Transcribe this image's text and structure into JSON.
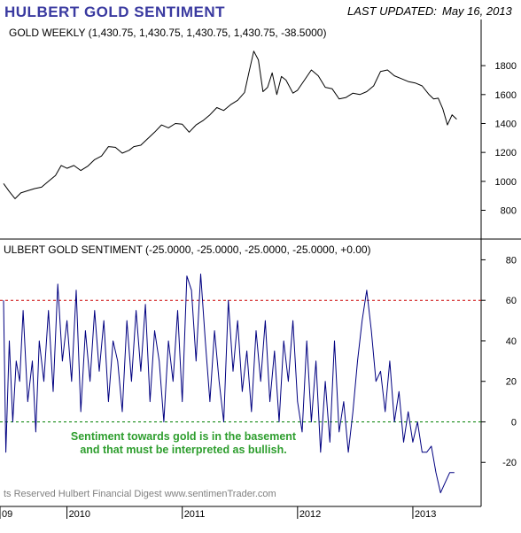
{
  "header": {
    "title": "HULBERT GOLD SENTIMENT",
    "last_updated_label": "LAST UPDATED:",
    "last_updated_date": "May 16, 2013"
  },
  "colors": {
    "title": "#3a3aa0",
    "price_line": "#000000",
    "sentiment_line": "#000080",
    "ref_line_60": "#cc0000",
    "ref_line_0": "#008000",
    "annotation": "#2e9e2e",
    "axis": "#000000",
    "footer": "#808080"
  },
  "annotation": {
    "line1": "Sentiment towards gold is in the basement",
    "line2": "and that must be interpreted as bullish."
  },
  "footer": "ts Reserved  Hulbert Financial Digest  www.sentimenTrader.com",
  "x_axis": {
    "tick_labels": [
      "09",
      "2010",
      "2011",
      "2012",
      "2013"
    ]
  },
  "chart_data": [
    {
      "type": "line",
      "label": "GOLD WEEKLY (1,430.75, 1,430.75, 1,430.75, 1,430.75, -38.5000)",
      "y_ticks": [
        800,
        1000,
        1200,
        1400,
        1600,
        1800
      ],
      "ylim": [
        650,
        1960
      ],
      "x_range": [
        2009.45,
        2013.4
      ],
      "series": [
        {
          "x": [
            2009.45,
            2009.5,
            2009.55,
            2009.6,
            2009.66,
            2009.72,
            2009.78,
            2009.84,
            2009.9,
            2009.95,
            2010.0,
            2010.06,
            2010.12,
            2010.18,
            2010.24,
            2010.3,
            2010.36,
            2010.42,
            2010.48,
            2010.54,
            2010.58,
            2010.64,
            2010.7,
            2010.76,
            2010.82,
            2010.88,
            2010.94,
            2011.0,
            2011.06,
            2011.12,
            2011.18,
            2011.24,
            2011.3,
            2011.36,
            2011.42,
            2011.48,
            2011.54,
            2011.58,
            2011.62,
            2011.66,
            2011.7,
            2011.74,
            2011.78,
            2011.82,
            2011.86,
            2011.9,
            2011.96,
            2012.0,
            2012.06,
            2012.12,
            2012.18,
            2012.24,
            2012.3,
            2012.36,
            2012.42,
            2012.48,
            2012.54,
            2012.6,
            2012.66,
            2012.72,
            2012.78,
            2012.84,
            2012.9,
            2012.96,
            2013.02,
            2013.08,
            2013.14,
            2013.18,
            2013.22,
            2013.26,
            2013.3,
            2013.34,
            2013.38
          ],
          "y": [
            985,
            930,
            880,
            920,
            935,
            950,
            960,
            1000,
            1040,
            1110,
            1090,
            1110,
            1075,
            1105,
            1150,
            1175,
            1240,
            1235,
            1195,
            1215,
            1240,
            1250,
            1295,
            1340,
            1390,
            1370,
            1400,
            1395,
            1340,
            1390,
            1420,
            1460,
            1510,
            1490,
            1530,
            1560,
            1615,
            1760,
            1900,
            1840,
            1620,
            1650,
            1750,
            1600,
            1725,
            1700,
            1610,
            1630,
            1700,
            1770,
            1730,
            1650,
            1640,
            1570,
            1580,
            1610,
            1600,
            1620,
            1660,
            1760,
            1770,
            1730,
            1710,
            1690,
            1680,
            1660,
            1600,
            1570,
            1575,
            1500,
            1390,
            1460,
            1430
          ]
        }
      ]
    },
    {
      "type": "line",
      "label": "ULBERT GOLD SENTIMENT (-25.0000, -25.0000, -25.0000, -25.0000, +0.00)",
      "y_ticks": [
        -20,
        0,
        20,
        40,
        60,
        80
      ],
      "ylim": [
        -40,
        85
      ],
      "reference_lines": [
        60,
        0
      ],
      "x_range": [
        2009.45,
        2013.4
      ],
      "series": [
        {
          "x": [
            2009.45,
            2009.47,
            2009.5,
            2009.53,
            2009.56,
            2009.59,
            2009.62,
            2009.66,
            2009.7,
            2009.73,
            2009.76,
            2009.8,
            2009.84,
            2009.88,
            2009.92,
            2009.96,
            2010.0,
            2010.04,
            2010.08,
            2010.12,
            2010.16,
            2010.2,
            2010.24,
            2010.28,
            2010.32,
            2010.36,
            2010.4,
            2010.44,
            2010.48,
            2010.52,
            2010.56,
            2010.6,
            2010.64,
            2010.68,
            2010.72,
            2010.76,
            2010.8,
            2010.84,
            2010.88,
            2010.92,
            2010.96,
            2011.0,
            2011.04,
            2011.08,
            2011.12,
            2011.16,
            2011.2,
            2011.24,
            2011.28,
            2011.32,
            2011.36,
            2011.4,
            2011.44,
            2011.48,
            2011.52,
            2011.56,
            2011.6,
            2011.64,
            2011.68,
            2011.72,
            2011.76,
            2011.8,
            2011.84,
            2011.88,
            2011.92,
            2011.96,
            2012.0,
            2012.04,
            2012.08,
            2012.12,
            2012.16,
            2012.2,
            2012.24,
            2012.28,
            2012.32,
            2012.36,
            2012.4,
            2012.44,
            2012.48,
            2012.52,
            2012.56,
            2012.6,
            2012.64,
            2012.68,
            2012.72,
            2012.76,
            2012.8,
            2012.84,
            2012.88,
            2012.92,
            2012.96,
            2013.0,
            2013.04,
            2013.08,
            2013.12,
            2013.16,
            2013.2,
            2013.24,
            2013.28,
            2013.32,
            2013.36
          ],
          "y": [
            60,
            -15,
            40,
            0,
            30,
            20,
            55,
            10,
            30,
            -5,
            40,
            20,
            55,
            15,
            68,
            30,
            50,
            20,
            65,
            5,
            45,
            20,
            55,
            25,
            50,
            10,
            40,
            30,
            5,
            50,
            20,
            55,
            25,
            58,
            10,
            45,
            30,
            0,
            40,
            20,
            55,
            10,
            72,
            65,
            30,
            73,
            40,
            10,
            45,
            20,
            0,
            60,
            25,
            50,
            15,
            35,
            5,
            45,
            20,
            50,
            10,
            35,
            0,
            40,
            20,
            50,
            10,
            -5,
            40,
            0,
            30,
            -15,
            20,
            -10,
            40,
            -5,
            10,
            -15,
            5,
            30,
            50,
            65,
            45,
            20,
            25,
            5,
            30,
            0,
            15,
            -10,
            5,
            -10,
            0,
            -15,
            -15,
            -12,
            -25,
            -35,
            -30,
            -25,
            -25
          ]
        }
      ]
    }
  ]
}
